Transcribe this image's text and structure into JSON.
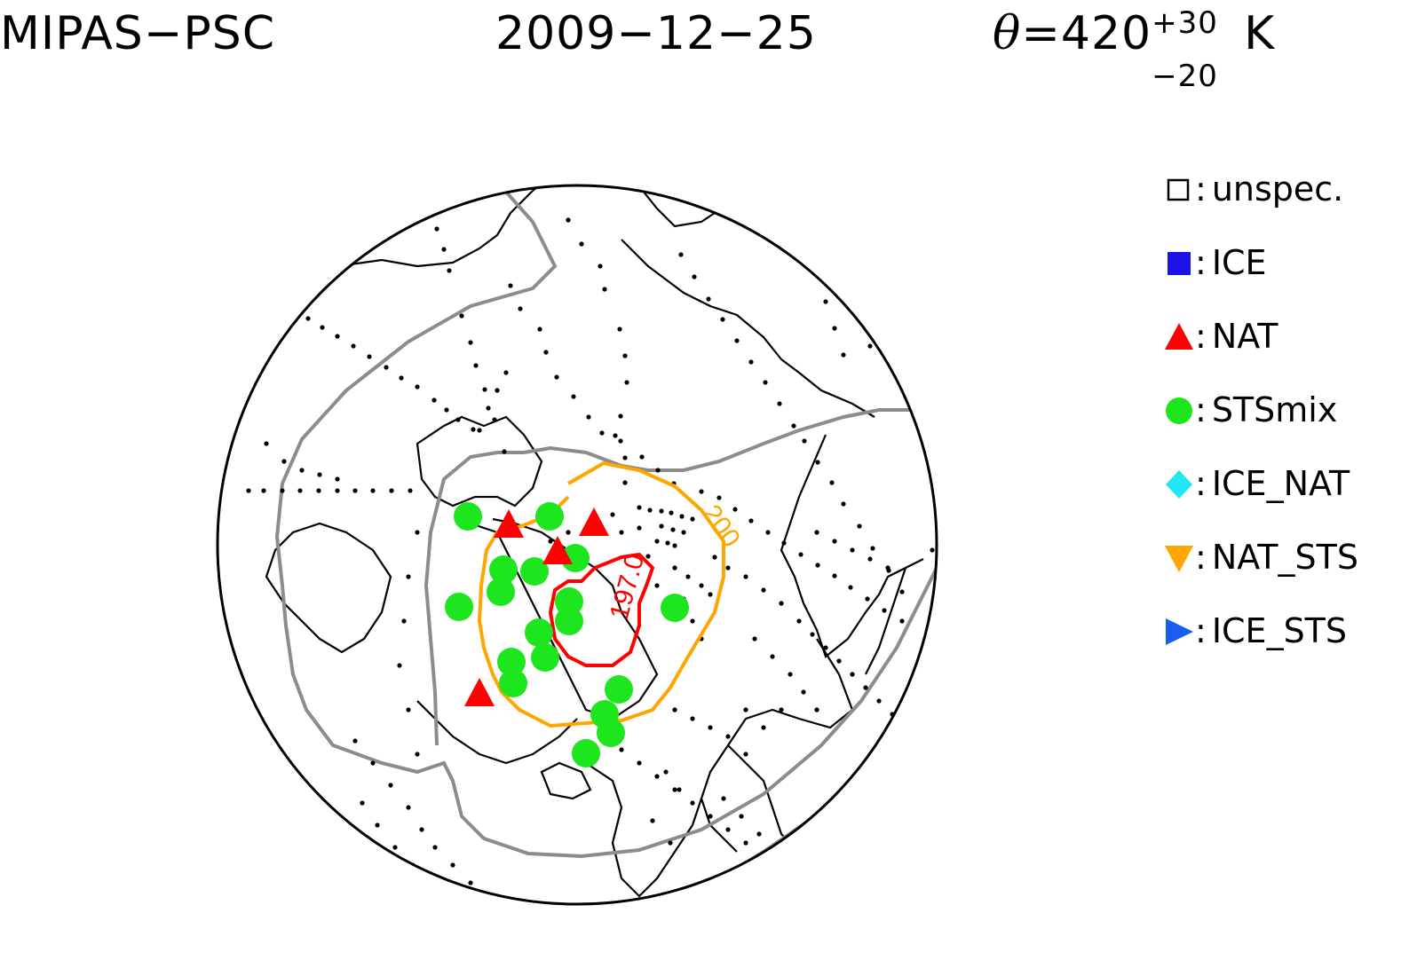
{
  "header": {
    "left": "MIPAS−PSC",
    "date": "2009−12−25",
    "theta_symbol": "θ",
    "theta_eq": "=420",
    "theta_plus": "+30",
    "theta_minus": "−20",
    "theta_unit": "K"
  },
  "legend": [
    {
      "name": "unspec.",
      "shape": "square-open",
      "color": "#000000"
    },
    {
      "name": "ICE",
      "shape": "square",
      "color": "#1a12e6"
    },
    {
      "name": "NAT",
      "shape": "triangle-up",
      "color": "#ff0000"
    },
    {
      "name": "STSmix",
      "shape": "circle",
      "color": "#1ee61e"
    },
    {
      "name": "ICE_NAT",
      "shape": "diamond",
      "color": "#22e6f0"
    },
    {
      "name": "NAT_STS",
      "shape": "triangle-down",
      "color": "#ffa500"
    },
    {
      "name": "ICE_STS",
      "shape": "triangle-right",
      "color": "#1a5cf0"
    }
  ],
  "separator": ":",
  "contours": [
    {
      "label": "200",
      "color": "#ffa500"
    },
    {
      "label": "197.0",
      "color": "#ff0000"
    }
  ],
  "colors": {
    "vortex_edge": "#8c8c8c",
    "coastline": "#000000",
    "measurement_dot": "#000000"
  }
}
